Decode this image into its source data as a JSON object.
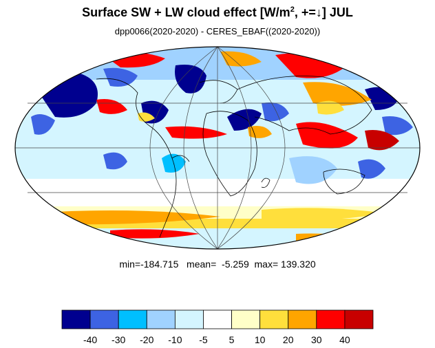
{
  "title": {
    "main": "Surface SW + LW cloud effect [W/m",
    "superscript": "2",
    "suffix": ", +=↓]  JUL"
  },
  "subtitle": "dpp0066(2020-2020) - CERES_EBAF((2020-2020))",
  "stats": {
    "min_label": "min=",
    "min": "-184.715",
    "mean_label": "mean=",
    "mean": "-5.259",
    "max_label": "max=",
    "max": "139.320"
  },
  "colorbar": {
    "colors": [
      "#00008f",
      "#3d63e3",
      "#00bfff",
      "#a0d2ff",
      "#d4f5ff",
      "#ffffff",
      "#ffffc8",
      "#ffdf3c",
      "#ffa500",
      "#ff0000",
      "#c80000"
    ],
    "tick_labels": [
      "-40",
      "-30",
      "-20",
      "-10",
      "-5",
      "5",
      "10",
      "20",
      "30",
      "40"
    ]
  }
}
